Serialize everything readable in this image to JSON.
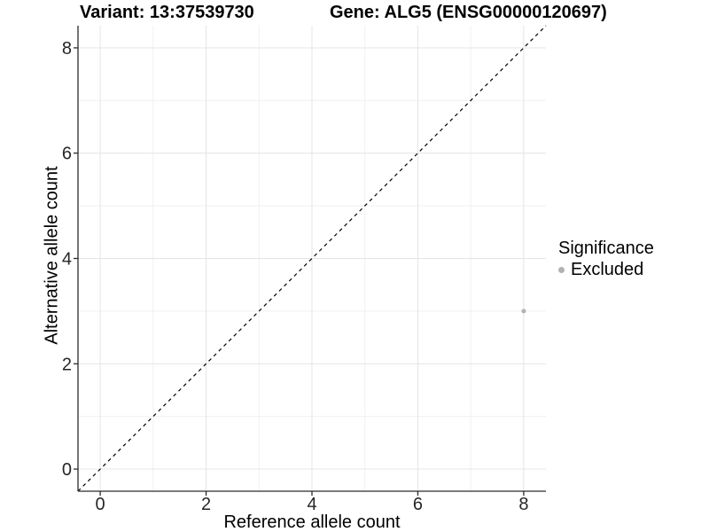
{
  "header": {
    "variant_title": "Variant: 13:37539730",
    "gene_title": "Gene: ALG5 (ENSG00000120697)"
  },
  "axes": {
    "x_label": "Reference allele count",
    "y_label": "Alternative allele count"
  },
  "legend": {
    "title": "Significance",
    "items": [
      {
        "label": "Excluded",
        "color": "#b2b2b2"
      }
    ]
  },
  "chart_data": {
    "type": "scatter",
    "title": "Variant: 13:37539730    Gene: ALG5 (ENSG00000120697)",
    "xlabel": "Reference allele count",
    "ylabel": "Alternative allele count",
    "xlim": [
      -0.42,
      8.42
    ],
    "ylim": [
      -0.42,
      8.42
    ],
    "x_ticks": [
      0,
      2,
      4,
      6,
      8
    ],
    "y_ticks": [
      0,
      2,
      4,
      6,
      8
    ],
    "x_minor_ticks": [
      1,
      3,
      5,
      7
    ],
    "y_minor_ticks": [
      1,
      3,
      5,
      7
    ],
    "grid": true,
    "legend_position": "right",
    "series": [
      {
        "name": "Excluded",
        "color": "#b2b2b2",
        "point_radius": 2.5,
        "points": [
          {
            "x": 8,
            "y": 3
          }
        ]
      }
    ],
    "reference_line": {
      "kind": "identity",
      "slope": 1,
      "intercept": 0,
      "style": "dashed",
      "color": "#000000"
    },
    "style": {
      "grid_major_color": "#e4e4e4",
      "grid_minor_color": "#f0f0f0",
      "axis_color": "#2b2b2b",
      "tick_label_color": "#262626",
      "background": "#ffffff"
    }
  }
}
